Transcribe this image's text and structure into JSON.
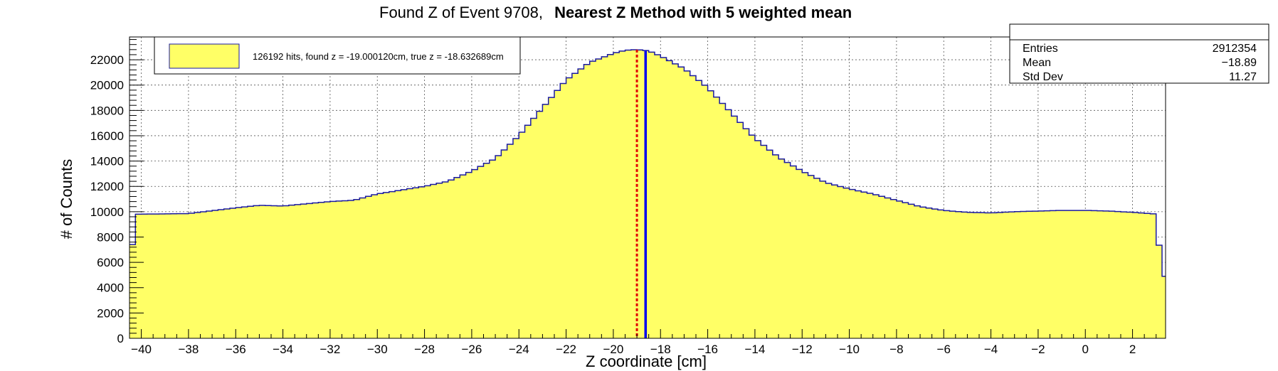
{
  "chart_data": {
    "type": "bar",
    "title_plain": "Found Z of Event 9708,",
    "title_bold": "Nearest Z Method with 5 weighted mean",
    "xlabel": "Z coordinate [cm]",
    "ylabel": "# of Counts",
    "xlim": [
      -40.5,
      3.4
    ],
    "ylim": [
      0,
      23800
    ],
    "x_ticks": [
      -40,
      -38,
      -36,
      -34,
      -32,
      -30,
      -28,
      -26,
      -24,
      -22,
      -20,
      -18,
      -16,
      -14,
      -12,
      -10,
      -8,
      -6,
      -4,
      -2,
      0,
      2
    ],
    "x_tick_labels": [
      "−40",
      "−38",
      "−36",
      "−34",
      "−32",
      "−30",
      "−28",
      "−26",
      "−24",
      "−22",
      "−20",
      "−18",
      "−16",
      "−14",
      "−12",
      "−10",
      "−8",
      "−6",
      "−4",
      "−2",
      "0",
      "2"
    ],
    "y_ticks": [
      0,
      2000,
      4000,
      6000,
      8000,
      10000,
      12000,
      14000,
      16000,
      18000,
      20000,
      22000
    ],
    "y_tick_labels": [
      "0",
      "2000",
      "4000",
      "6000",
      "8000",
      "10000",
      "12000",
      "14000",
      "16000",
      "18000",
      "20000",
      "22000"
    ],
    "grid": true,
    "bin_width": 0.25,
    "fill_color": "#ffff66",
    "line_color": "#1a1aa0",
    "histogram_points": [
      [
        -40.5,
        5000
      ],
      [
        -40.25,
        9800
      ],
      [
        -38,
        9850
      ],
      [
        -36,
        10300
      ],
      [
        -35,
        10500
      ],
      [
        -34,
        10450
      ],
      [
        -32,
        10800
      ],
      [
        -31,
        10900
      ],
      [
        -30,
        11400
      ],
      [
        -28,
        12000
      ],
      [
        -27,
        12400
      ],
      [
        -26,
        13200
      ],
      [
        -25,
        14200
      ],
      [
        -24,
        16000
      ],
      [
        -23,
        18200
      ],
      [
        -22,
        20400
      ],
      [
        -21,
        21800
      ],
      [
        -20,
        22500
      ],
      [
        -19.5,
        22750
      ],
      [
        -19,
        22800
      ],
      [
        -18.5,
        22700
      ],
      [
        -18,
        22300
      ],
      [
        -17,
        21300
      ],
      [
        -16,
        19800
      ],
      [
        -15,
        17800
      ],
      [
        -14,
        15800
      ],
      [
        -13,
        14300
      ],
      [
        -12,
        13200
      ],
      [
        -11,
        12300
      ],
      [
        -10,
        11800
      ],
      [
        -9,
        11400
      ],
      [
        -8,
        10900
      ],
      [
        -7,
        10400
      ],
      [
        -6,
        10100
      ],
      [
        -5,
        9950
      ],
      [
        -4,
        9900
      ],
      [
        -3,
        10000
      ],
      [
        -2,
        10050
      ],
      [
        -1,
        10100
      ],
      [
        0,
        10100
      ],
      [
        1,
        10050
      ],
      [
        2,
        9950
      ],
      [
        3.1,
        9800
      ],
      [
        3.15,
        4900
      ],
      [
        3.4,
        4900
      ]
    ],
    "found_z": -19.00012,
    "true_z": -18.632689,
    "found_z_color": "#e00000",
    "true_z_color": "#0000ee",
    "legend": {
      "label": "126192 hits, found z = -19.000120cm, true z = -18.632689cm",
      "position": "top-left"
    },
    "stats": [
      {
        "name": "Entries",
        "value": "2912354"
      },
      {
        "name": "Mean",
        "value": "−18.89"
      },
      {
        "name": "Std Dev",
        "value": "11.27"
      }
    ]
  }
}
